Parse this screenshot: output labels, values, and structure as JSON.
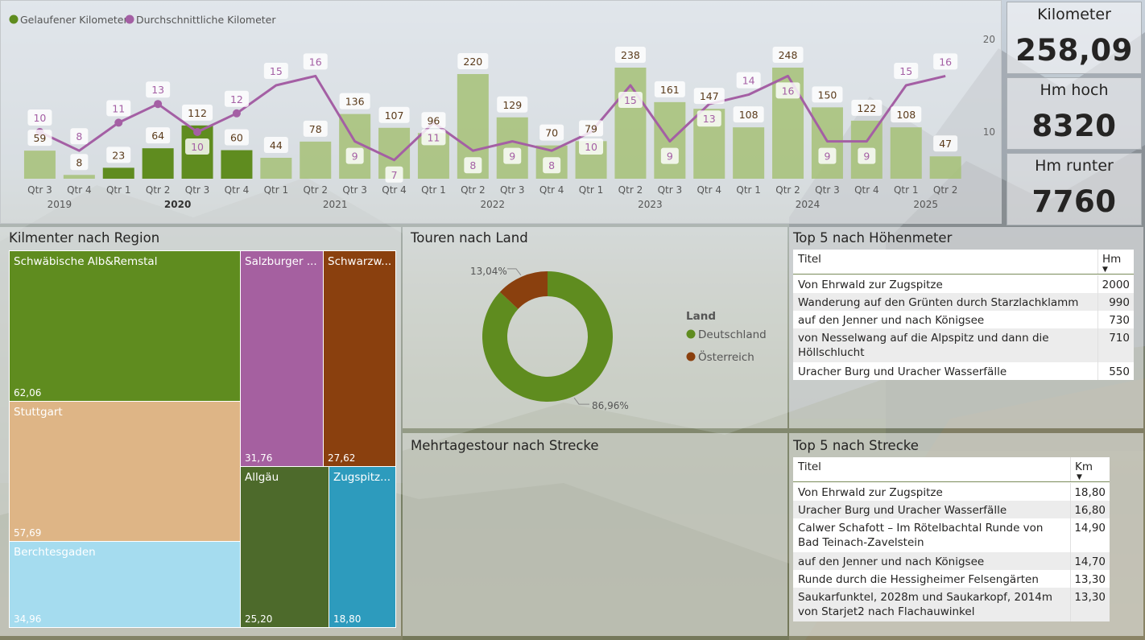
{
  "colors": {
    "green": "#5f8c1f",
    "green_light": "#a6c177",
    "purple": "#a45fa4",
    "brown": "#8a400e",
    "beige": "#deb586",
    "pink": "#a560a0",
    "sky": "#a5dcef",
    "darkgreen": "#4d6a2b",
    "teal": "#2d9bbd"
  },
  "kpis": [
    {
      "label": "Kilometer",
      "value": "258,09"
    },
    {
      "label": "Hm hoch",
      "value": "8320"
    },
    {
      "label": "Hm runter",
      "value": "7760"
    }
  ],
  "chart_data": {
    "type": "bar",
    "legend": [
      "Gelaufener Kilometer",
      "Durchschnittliche Kilometer"
    ],
    "categories": [
      "Qtr 3",
      "Qtr 4",
      "Qtr 1",
      "Qtr 2",
      "Qtr 3",
      "Qtr 4",
      "Qtr 1",
      "Qtr 2",
      "Qtr 3",
      "Qtr 4",
      "Qtr 1",
      "Qtr 2",
      "Qtr 3",
      "Qtr 4",
      "Qtr 1",
      "Qtr 2",
      "Qtr 3",
      "Qtr 4",
      "Qtr 1",
      "Qtr 2",
      "Qtr 3",
      "Qtr 4",
      "Qtr 1",
      "Qtr 2"
    ],
    "years": [
      {
        "label": "2019",
        "from": 0,
        "to": 1
      },
      {
        "label": "2020",
        "from": 2,
        "to": 5,
        "bold": true
      },
      {
        "label": "2021",
        "from": 6,
        "to": 9
      },
      {
        "label": "2022",
        "from": 10,
        "to": 13
      },
      {
        "label": "2023",
        "from": 14,
        "to": 17
      },
      {
        "label": "2024",
        "from": 18,
        "to": 21
      },
      {
        "label": "2025",
        "from": 22,
        "to": 23
      }
    ],
    "series": [
      {
        "name": "Gelaufener Kilometer",
        "type": "bar",
        "values": [
          59,
          8,
          23,
          64,
          112,
          60,
          44,
          78,
          136,
          107,
          96,
          220,
          129,
          70,
          79,
          238,
          161,
          147,
          108,
          248,
          150,
          122,
          108,
          47
        ]
      },
      {
        "name": "Durchschnittliche Kilometer",
        "type": "line",
        "values": [
          10,
          8,
          11,
          13,
          10,
          12,
          15,
          16,
          9,
          7,
          11,
          8,
          9,
          8,
          10,
          15,
          9,
          13,
          14,
          16,
          9,
          9,
          15,
          16
        ]
      }
    ],
    "highlighted": [
      2,
      3,
      4,
      5
    ],
    "bar_ylim": [
      0,
      260
    ],
    "line_ylim": [
      0,
      25
    ],
    "right_axis_ticks": [
      10,
      20
    ]
  },
  "treemap": {
    "title": "Kilmenter nach Region",
    "items": [
      {
        "name": "Schwäbische Alb&Remstal",
        "value": "62,06",
        "color": "#5f8c1f"
      },
      {
        "name": "Stuttgart",
        "value": "57,69",
        "color": "#deb586"
      },
      {
        "name": "Berchtesgaden",
        "value": "34,96",
        "color": "#a5dcef"
      },
      {
        "name": "Salzburger ...",
        "value": "31,76",
        "color": "#a560a0"
      },
      {
        "name": "Schwarzw...",
        "value": "27,62",
        "color": "#8a400e"
      },
      {
        "name": "Allgäu",
        "value": "25,20",
        "color": "#4d6a2b"
      },
      {
        "name": "Zugspitz...",
        "value": "18,80",
        "color": "#2d9bbd"
      }
    ]
  },
  "donut": {
    "title": "Touren nach Land",
    "legend_title": "Land",
    "slices": [
      {
        "name": "Deutschland",
        "percent": 86.96,
        "label": "86,96%",
        "color": "#5f8c1f"
      },
      {
        "name": "Österreich",
        "percent": 13.04,
        "label": "13,04%",
        "color": "#8a400e"
      }
    ]
  },
  "multiday": {
    "title": "Mehrtagestour nach Strecke"
  },
  "top_hm": {
    "title": "Top 5 nach Höhenmeter",
    "col_title": "Titel",
    "col_value": "Hm",
    "rows": [
      {
        "title": "Von Ehrwald zur Zugspitze",
        "value": "2000"
      },
      {
        "title": "Wanderung auf den Grünten durch Starzlachklamm",
        "value": "990"
      },
      {
        "title": "auf den Jenner und nach Königsee",
        "value": "730"
      },
      {
        "title": "von Nesselwang auf die Alpspitz und dann die Höllschlucht",
        "value": "710"
      },
      {
        "title": "Uracher Burg und Uracher Wasserfälle",
        "value": "550"
      }
    ]
  },
  "top_km": {
    "title": "Top 5 nach Strecke",
    "col_title": "Titel",
    "col_value": "Km",
    "rows": [
      {
        "title": "Von Ehrwald zur Zugspitze",
        "value": "18,80"
      },
      {
        "title": "Uracher Burg und Uracher Wasserfälle",
        "value": "16,80"
      },
      {
        "title": "Calwer Schafott – Im Rötelbachtal Runde von Bad Teinach-Zavelstein",
        "value": "14,90"
      },
      {
        "title": "auf den Jenner und nach Königsee",
        "value": "14,70"
      },
      {
        "title": "Runde durch die Hessigheimer Felsengärten",
        "value": "13,30"
      },
      {
        "title": "Saukarfunktel, 2028m und Saukarkopf, 2014m von Starjet2 nach Flachauwinkel",
        "value": "13,30"
      }
    ]
  }
}
